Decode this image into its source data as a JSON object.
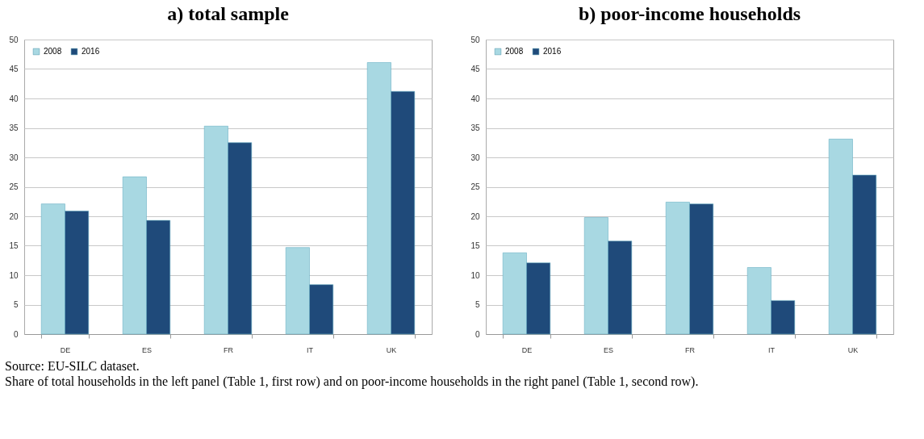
{
  "chart_data": [
    {
      "type": "bar",
      "title": "a) total sample",
      "categories": [
        "DE",
        "ES",
        "FR",
        "IT",
        "UK"
      ],
      "series": [
        {
          "name": "2008",
          "color": "#a8d8e2",
          "values": [
            22.1,
            26.7,
            35.3,
            14.7,
            46.1
          ]
        },
        {
          "name": "2016",
          "color": "#1f4a7a",
          "values": [
            20.9,
            19.3,
            32.5,
            8.4,
            41.2
          ]
        }
      ],
      "ylim": [
        0,
        50
      ],
      "yticks": [
        0,
        5,
        10,
        15,
        20,
        25,
        30,
        35,
        40,
        45,
        50
      ],
      "grid": "y",
      "legend": "top left",
      "annotations": [
        "Source: EU-SILC dataset.",
        "Share of total households in the left panel (Table 1, first row) and on poor-income households in the right panel (Table 1, second row)."
      ]
    },
    {
      "type": "bar",
      "title": "b) poor-income households",
      "categories": [
        "DE",
        "ES",
        "FR",
        "IT",
        "UK"
      ],
      "series": [
        {
          "name": "2008",
          "color": "#a8d8e2",
          "values": [
            13.8,
            19.8,
            22.4,
            11.3,
            33.1
          ]
        },
        {
          "name": "2016",
          "color": "#1f4a7a",
          "values": [
            12.1,
            15.8,
            22.1,
            5.7,
            27.0
          ]
        }
      ],
      "ylim": [
        0,
        50
      ],
      "yticks": [
        0,
        5,
        10,
        15,
        20,
        25,
        30,
        35,
        40,
        45,
        50
      ],
      "grid": "y",
      "legend": "top left"
    }
  ]
}
